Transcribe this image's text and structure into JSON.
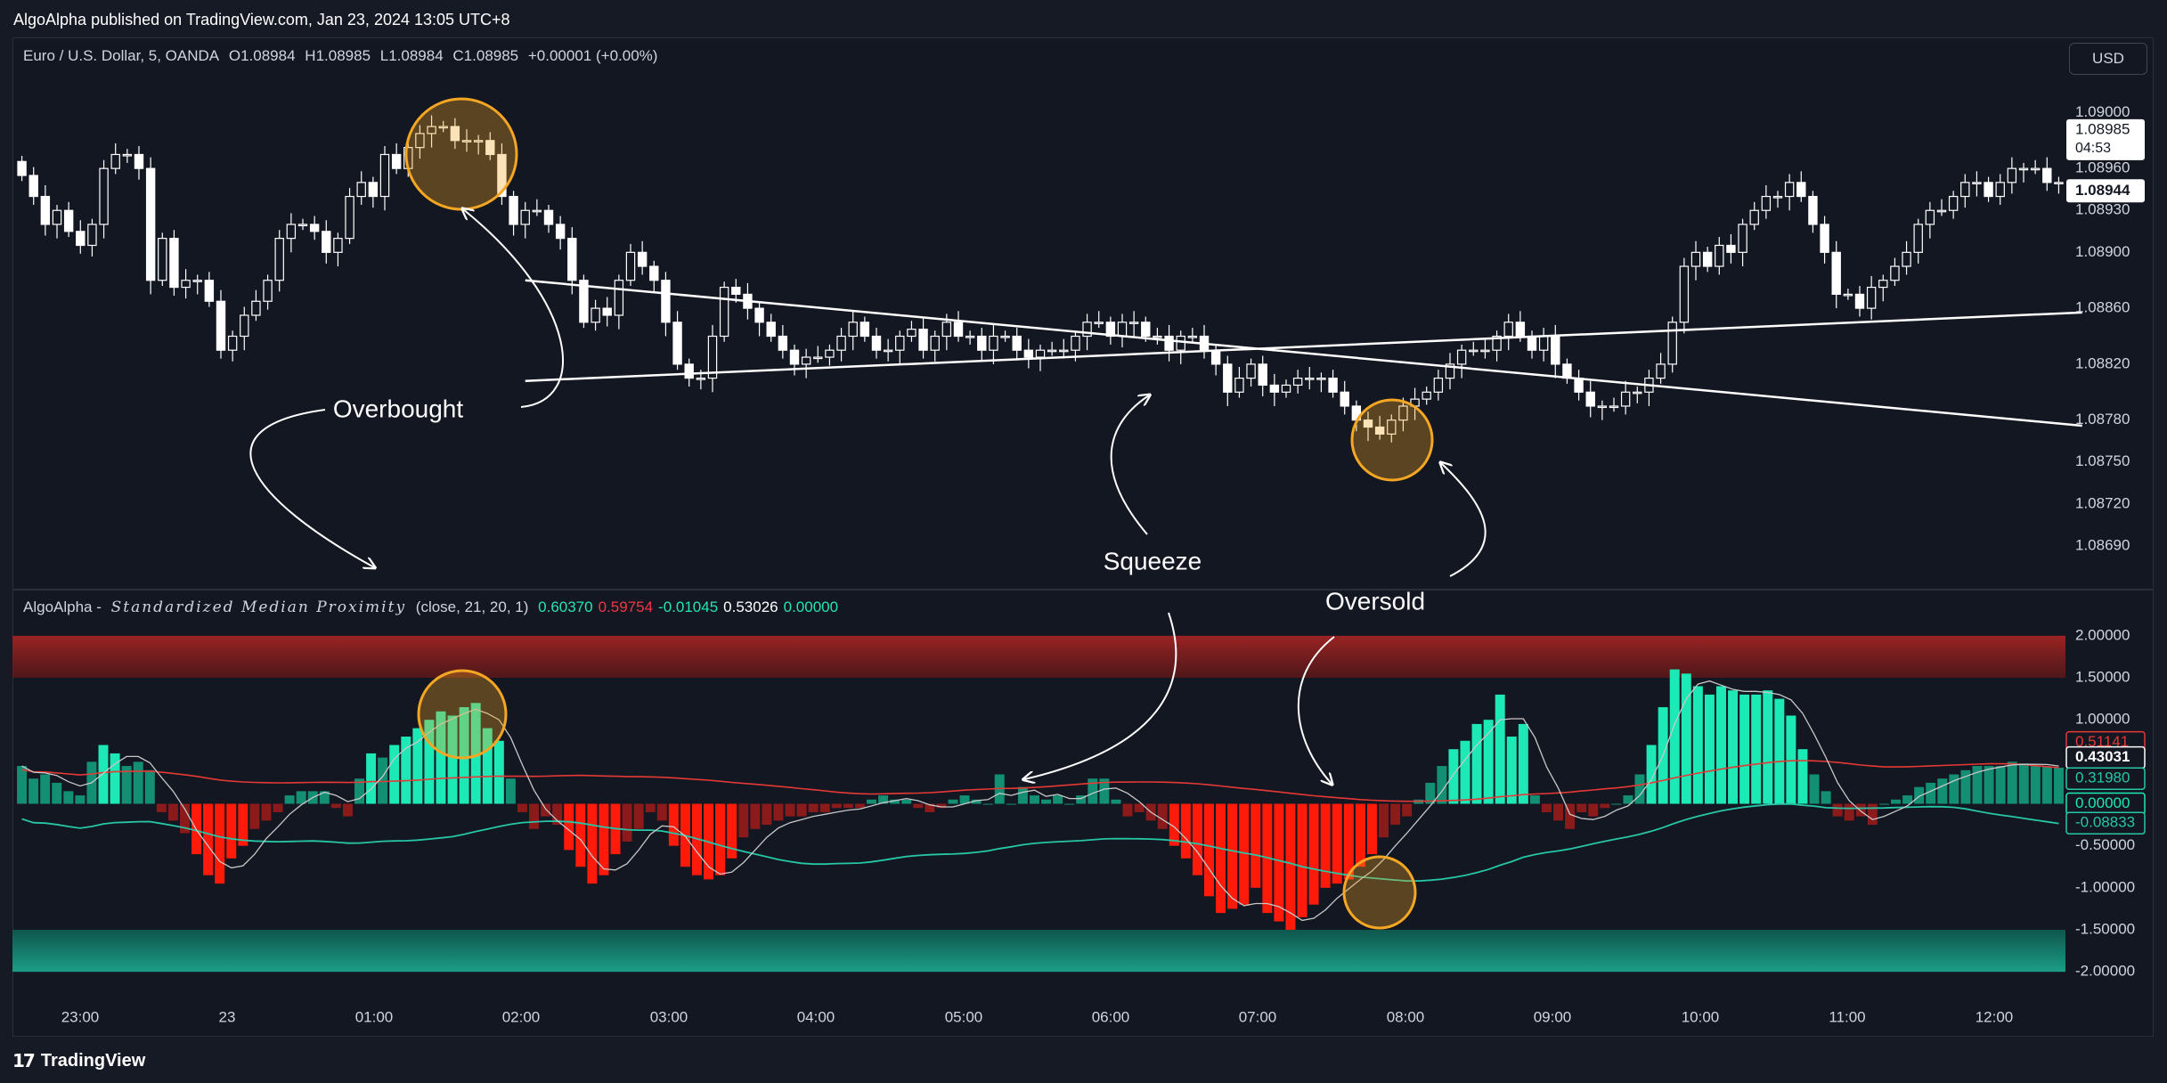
{
  "header": {
    "published": "AlgoAlpha published on TradingView.com, Jan 23, 2024 13:05 UTC+8"
  },
  "price_legend": {
    "symbol": "Euro / U.S. Dollar, 5, OANDA",
    "open": "O1.08984",
    "high": "H1.08985",
    "low": "L1.08984",
    "close": "C1.08985",
    "change": "+0.00001 (+0.00%)"
  },
  "currency_button": "USD",
  "indicator_legend": {
    "name": "AlgoAlpha -",
    "title": "Standardized Median Proximity",
    "params": "(close, 21, 20, 1)",
    "values": [
      {
        "text": "0.60370",
        "color": "#26e6b0"
      },
      {
        "text": "0.59754",
        "color": "#f23645"
      },
      {
        "text": "-0.01045",
        "color": "#26e6b0"
      },
      {
        "text": "0.53026",
        "color": "#ffffff"
      },
      {
        "text": "0.00000",
        "color": "#26e6b0"
      }
    ]
  },
  "annotations": {
    "overbought": "Overbought",
    "squeeze": "Squeeze",
    "oversold": "Oversold"
  },
  "footer": {
    "brand": "TradingView"
  },
  "colors": {
    "bull_candle": "#ffffff",
    "bear_candle": "#ffffff",
    "hist_bull_strong": "#1de9b6",
    "hist_bull_weak": "#138f74",
    "hist_bear_strong": "#ff1a0a",
    "hist_bear_weak": "#8b1a1a",
    "median_line": "#e53935",
    "signal_line": "#26c6a6",
    "smooth_line": "#c8c8c8",
    "overbought_zone": "#8b1e1e",
    "oversold_zone": "#12806a",
    "circle": "#f5a623"
  },
  "chart_data": [
    {
      "type": "candlestick",
      "title": "Euro / U.S. Dollar, 5, OANDA",
      "x_ticks": [
        "23:00",
        "23",
        "01:00",
        "02:00",
        "03:00",
        "04:00",
        "05:00",
        "06:00",
        "07:00",
        "08:00",
        "09:00",
        "10:00",
        "11:00",
        "12:00"
      ],
      "y_ticks": [
        "1.09000",
        "1.08960",
        "1.08930",
        "1.08900",
        "1.08860",
        "1.08820",
        "1.08780",
        "1.08750",
        "1.08720",
        "1.08690"
      ],
      "ylim": [
        1.0866,
        1.0902
      ],
      "price_labels": {
        "last": "1.08985",
        "countdown": "04:53",
        "marker": "1.08944"
      },
      "closes": [
        1.08955,
        1.0894,
        1.0892,
        1.0893,
        1.08915,
        1.08905,
        1.0892,
        1.0896,
        1.0897,
        1.0897,
        1.0896,
        1.0888,
        1.0891,
        1.08875,
        1.0888,
        1.0888,
        1.08865,
        1.0883,
        1.0884,
        1.08855,
        1.08865,
        1.0888,
        1.0891,
        1.0892,
        1.0892,
        1.08915,
        1.089,
        1.0891,
        1.0894,
        1.0895,
        1.0894,
        1.0897,
        1.0896,
        1.08975,
        1.08985,
        1.0899,
        1.0899,
        1.0898,
        1.0898,
        1.0898,
        1.0897,
        1.0894,
        1.0892,
        1.0893,
        1.0893,
        1.0892,
        1.0891,
        1.0888,
        1.0885,
        1.0886,
        1.08855,
        1.0888,
        1.089,
        1.0889,
        1.0888,
        1.0885,
        1.0882,
        1.0881,
        1.0881,
        1.0884,
        1.08875,
        1.0887,
        1.0886,
        1.0885,
        1.0884,
        1.0883,
        1.0882,
        1.08825,
        1.08825,
        1.0883,
        1.0884,
        1.0885,
        1.0884,
        1.0883,
        1.0883,
        1.0884,
        1.08845,
        1.0883,
        1.0884,
        1.0885,
        1.0884,
        1.0884,
        1.0883,
        1.0884,
        1.0884,
        1.0883,
        1.08825,
        1.0883,
        1.0883,
        1.0883,
        1.0884,
        1.0885,
        1.0885,
        1.0884,
        1.0885,
        1.0885,
        1.0884,
        1.0884,
        1.0883,
        1.0884,
        1.0884,
        1.0883,
        1.0882,
        1.088,
        1.0881,
        1.0882,
        1.08805,
        1.088,
        1.08805,
        1.0881,
        1.0881,
        1.0881,
        1.088,
        1.0879,
        1.0878,
        1.08775,
        1.0877,
        1.0878,
        1.0879,
        1.08795,
        1.088,
        1.0881,
        1.0882,
        1.0883,
        1.0883,
        1.0883,
        1.0884,
        1.0885,
        1.0884,
        1.0883,
        1.0884,
        1.0882,
        1.0881,
        1.088,
        1.0879,
        1.0879,
        1.0879,
        1.088,
        1.088,
        1.0881,
        1.0882,
        1.0885,
        1.0889,
        1.089,
        1.0889,
        1.08905,
        1.089,
        1.0892,
        1.0893,
        1.0894,
        1.0894,
        1.0895,
        1.0894,
        1.0892,
        1.089,
        1.0887,
        1.0887,
        1.0886,
        1.08875,
        1.0888,
        1.0889,
        1.089,
        1.0892,
        1.0893,
        1.0893,
        1.0894,
        1.0895,
        1.0895,
        1.0894,
        1.0895,
        1.0896,
        1.0896,
        1.0896,
        1.0895,
        1.0895
      ],
      "trendlines": [
        {
          "name": "upper",
          "from": {
            "bar": 43,
            "price": 1.0888
          },
          "to": {
            "bar": 176,
            "price": 1.08776
          }
        },
        {
          "name": "lower",
          "from": {
            "bar": 43,
            "price": 1.08808
          },
          "to": {
            "bar": 176,
            "price": 1.08857
          }
        }
      ]
    },
    {
      "type": "histogram",
      "title": "Standardized Median Proximity",
      "y_ticks": [
        "2.00000",
        "1.50000",
        "1.00000",
        "0.50000",
        "0.00000",
        "-0.50000",
        "-1.00000",
        "-1.50000",
        "-2.00000"
      ],
      "ylim": [
        -2.2,
        2.2
      ],
      "overbought_zone": [
        1.5,
        2.0
      ],
      "oversold_zone": [
        -2.0,
        -1.5
      ],
      "last_value_labels": [
        "0.51141",
        "0.43031",
        "0.31980",
        "0.00000",
        "-0.08833"
      ],
      "values": [
        0.45,
        0.3,
        0.35,
        0.25,
        0.15,
        0.1,
        0.5,
        0.7,
        0.6,
        0.45,
        0.5,
        0.4,
        -0.1,
        -0.2,
        -0.35,
        -0.6,
        -0.85,
        -0.95,
        -0.65,
        -0.5,
        -0.3,
        -0.2,
        -0.1,
        0.1,
        0.15,
        0.15,
        0.15,
        -0.05,
        -0.15,
        0.3,
        0.6,
        0.55,
        0.7,
        0.8,
        0.9,
        1.0,
        1.1,
        1.05,
        1.15,
        1.2,
        0.9,
        0.75,
        0.3,
        -0.1,
        -0.3,
        -0.15,
        -0.25,
        -0.55,
        -0.75,
        -0.95,
        -0.85,
        -0.6,
        -0.45,
        -0.3,
        -0.1,
        -0.2,
        -0.5,
        -0.75,
        -0.85,
        -0.9,
        -0.85,
        -0.65,
        -0.4,
        -0.3,
        -0.25,
        -0.2,
        -0.15,
        -0.15,
        -0.1,
        -0.1,
        -0.05,
        -0.05,
        -0.05,
        0.05,
        0.1,
        0.05,
        0.05,
        -0.05,
        -0.1,
        -0.05,
        0.05,
        0.1,
        0.05,
        0.0,
        0.35,
        0.0,
        0.2,
        0.1,
        0.05,
        0.1,
        0.0,
        0.1,
        0.3,
        0.3,
        0.05,
        -0.15,
        -0.1,
        -0.2,
        -0.3,
        -0.5,
        -0.65,
        -0.85,
        -1.1,
        -1.3,
        -1.25,
        -1.2,
        -1.0,
        -1.3,
        -1.4,
        -1.5,
        -1.35,
        -1.2,
        -1.0,
        -0.95,
        -0.9,
        -0.75,
        -0.6,
        -0.4,
        -0.25,
        -0.15,
        0.05,
        0.25,
        0.45,
        0.65,
        0.75,
        0.95,
        1.0,
        1.3,
        0.8,
        0.95,
        0.1,
        -0.1,
        -0.2,
        -0.3,
        -0.1,
        -0.15,
        -0.05,
        0.0,
        0.1,
        0.35,
        0.7,
        1.15,
        1.6,
        1.55,
        1.4,
        1.3,
        1.4,
        1.35,
        1.3,
        1.3,
        1.35,
        1.25,
        1.05,
        0.65,
        0.35,
        0.15,
        -0.15,
        -0.2,
        -0.15,
        -0.25,
        0.0,
        0.05,
        0.1,
        0.2,
        0.25,
        0.3,
        0.35,
        0.4,
        0.45,
        0.45,
        0.45,
        0.5,
        0.48,
        0.45,
        0.44,
        0.43
      ]
    }
  ]
}
